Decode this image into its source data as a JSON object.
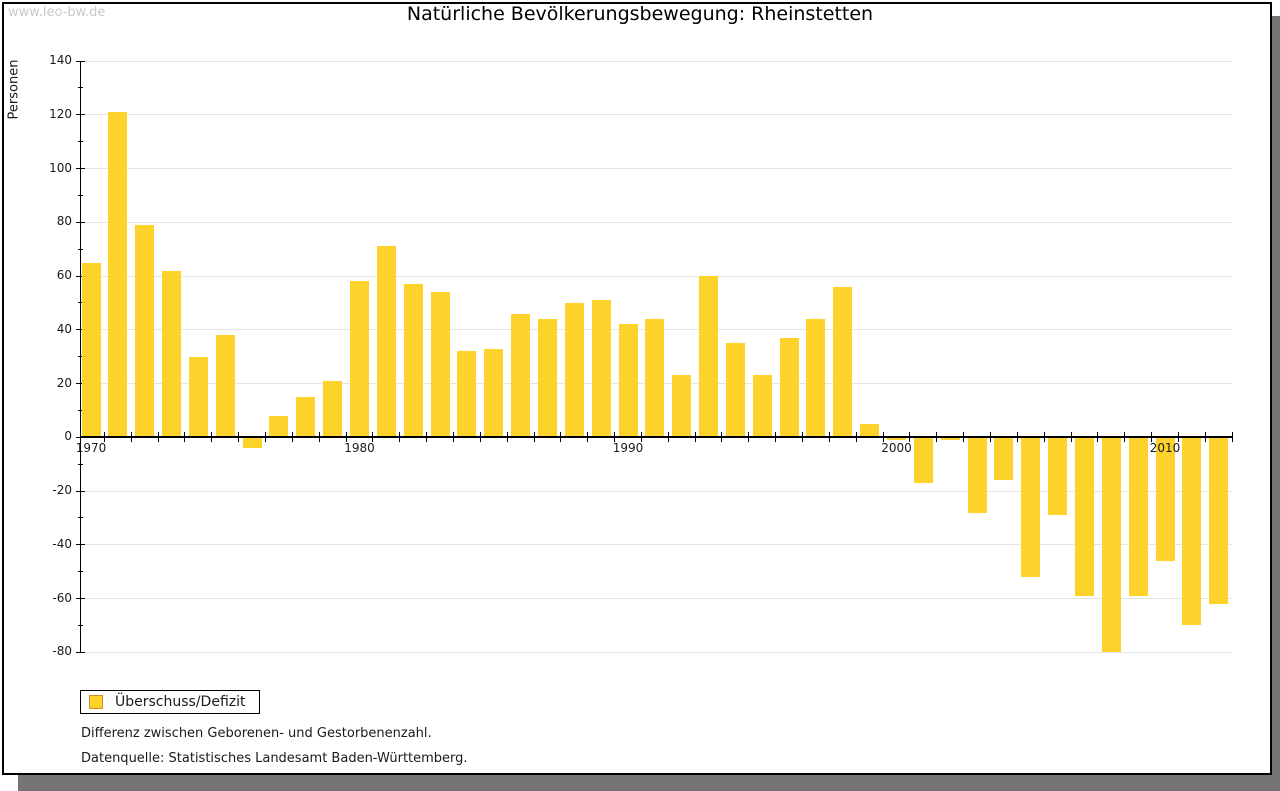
{
  "watermark": "www.leo-bw.de",
  "title": "Natürliche Bevölkerungsbewegung: Rheinstetten",
  "legend": {
    "label": "Überschuss/Defizit"
  },
  "footnotes": [
    "Differenz zwischen Geborenen- und Gestorbenenzahl.",
    "Datenquelle: Statistisches Landesamt Baden-Württemberg."
  ],
  "colors": {
    "bar": "#FDD32B",
    "bar_border": "#C7922B",
    "grid": "#E4E4E4",
    "axis": "#000000",
    "watermark_text": "#C9C9C9",
    "frame_shadow": "#757575"
  },
  "chart_data": {
    "type": "bar",
    "title": "Natürliche Bevölkerungsbewegung: Rheinstetten",
    "xlabel": "",
    "ylabel": "Personen",
    "series": [
      {
        "name": "Überschuss/Defizit",
        "color": "#FDD32B"
      }
    ],
    "x": [
      1970,
      1971,
      1972,
      1973,
      1974,
      1975,
      1976,
      1977,
      1978,
      1979,
      1980,
      1981,
      1982,
      1983,
      1984,
      1985,
      1986,
      1987,
      1988,
      1989,
      1990,
      1991,
      1992,
      1993,
      1994,
      1995,
      1996,
      1997,
      1998,
      1999,
      2000,
      2001,
      2002,
      2003,
      2004,
      2005,
      2006,
      2007,
      2008,
      2009,
      2010,
      2011,
      2012
    ],
    "values": [
      65,
      121,
      79,
      62,
      30,
      38,
      -4,
      8,
      15,
      21,
      58,
      71,
      57,
      54,
      32,
      33,
      46,
      44,
      50,
      51,
      42,
      44,
      23,
      60,
      35,
      23,
      37,
      44,
      56,
      5,
      -1,
      -17,
      -1,
      -28,
      -16,
      -52,
      -29,
      -59,
      -80,
      -59,
      -46,
      -70,
      -62
    ],
    "ylim": [
      -80,
      140
    ],
    "ytick_step": 20,
    "ytick_minor_step": 10,
    "xtick_labels": [
      1970,
      1980,
      1990,
      2000,
      2010
    ],
    "grid": "horizontal",
    "legend_position": "bottom-left"
  }
}
